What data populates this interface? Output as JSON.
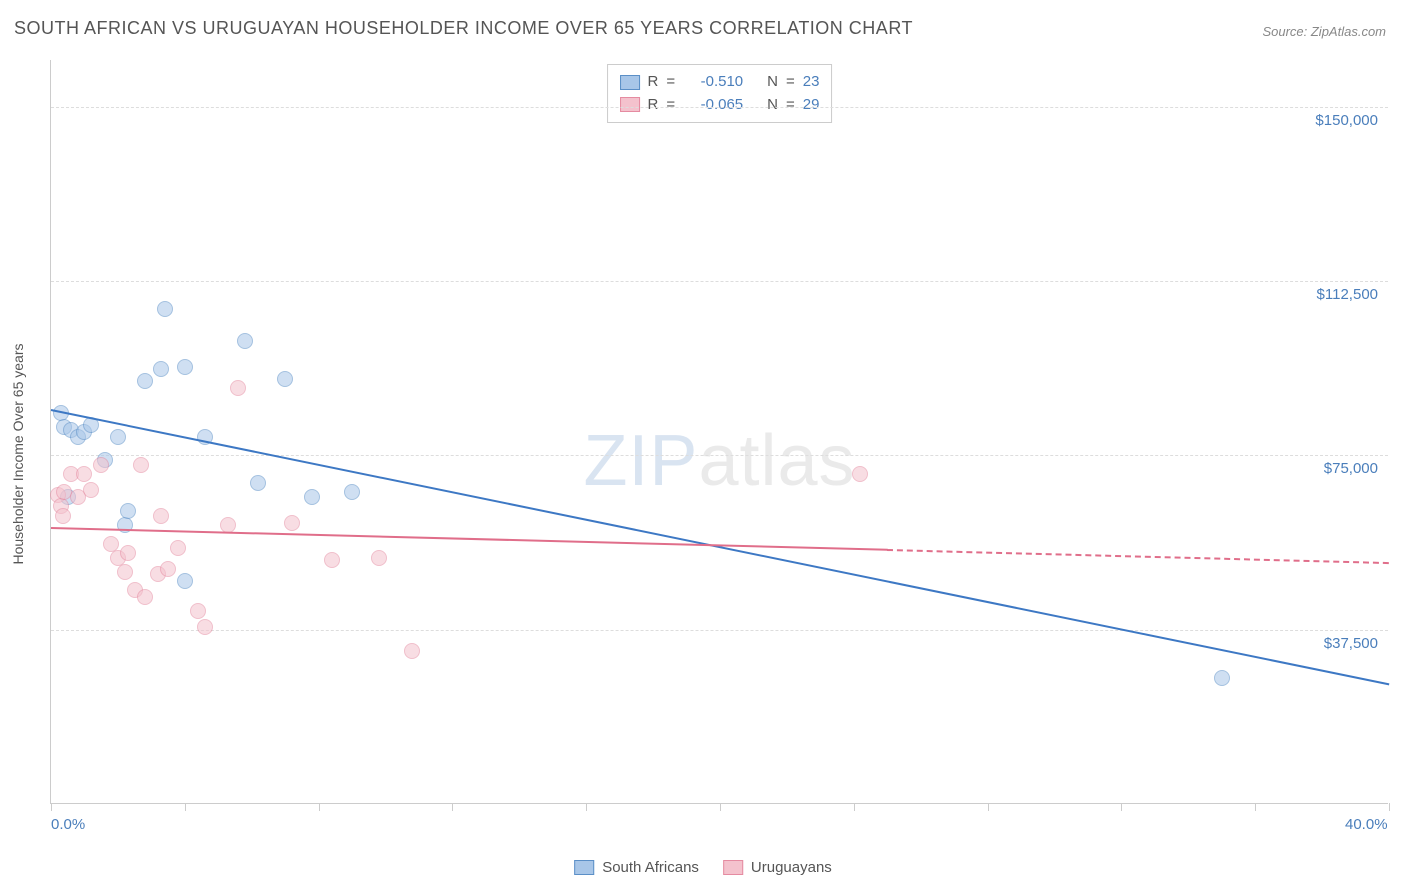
{
  "title": "SOUTH AFRICAN VS URUGUAYAN HOUSEHOLDER INCOME OVER 65 YEARS CORRELATION CHART",
  "source": "Source: ZipAtlas.com",
  "ylabel": "Householder Income Over 65 years",
  "watermark": {
    "part1": "ZIP",
    "part2": "atlas"
  },
  "chart": {
    "type": "scatter-with-trend",
    "background_color": "#ffffff",
    "grid_color": "#dddddd",
    "axis_color": "#cccccc",
    "label_color": "#555555",
    "tick_color": "#4a7ebb",
    "title_fontsize": 18,
    "label_fontsize": 14,
    "tick_fontsize": 15,
    "xlim": [
      0,
      40
    ],
    "ylim": [
      0,
      160000
    ],
    "x_ticks": [
      0,
      4,
      8,
      12,
      16,
      20,
      24,
      28,
      32,
      36,
      40
    ],
    "x_tick_labels": {
      "0": "0.0%",
      "40": "40.0%"
    },
    "y_gridlines": [
      37500,
      75000,
      112500,
      150000
    ],
    "y_tick_labels": [
      "$37,500",
      "$75,000",
      "$112,500",
      "$150,000"
    ],
    "point_radius": 8,
    "point_opacity": 0.55,
    "series": [
      {
        "name": "South Africans",
        "fill": "#a8c6e8",
        "stroke": "#5b8fc7",
        "line_color": "#3d78c4",
        "stats": {
          "R": "-0.510",
          "N": "23"
        },
        "trend": {
          "x1": 0,
          "y1": 85000,
          "x2": 40,
          "y2": 26000,
          "dash_from_x": 40
        },
        "points": [
          [
            0.3,
            84000
          ],
          [
            0.4,
            81000
          ],
          [
            0.5,
            66000
          ],
          [
            0.6,
            80500
          ],
          [
            0.8,
            79000
          ],
          [
            1.0,
            80000
          ],
          [
            1.2,
            81500
          ],
          [
            1.6,
            74000
          ],
          [
            2.0,
            79000
          ],
          [
            2.2,
            60000
          ],
          [
            2.3,
            63000
          ],
          [
            2.8,
            91000
          ],
          [
            3.3,
            93500
          ],
          [
            3.4,
            106500
          ],
          [
            4.0,
            94000
          ],
          [
            4.0,
            48000
          ],
          [
            4.6,
            79000
          ],
          [
            5.8,
            99500
          ],
          [
            6.2,
            69000
          ],
          [
            7.0,
            91500
          ],
          [
            7.8,
            66000
          ],
          [
            9.0,
            67000
          ],
          [
            35.0,
            27000
          ]
        ]
      },
      {
        "name": "Uruguayans",
        "fill": "#f4c2cd",
        "stroke": "#e58ba1",
        "line_color": "#e06e8a",
        "stats": {
          "R": "-0.065",
          "N": "29"
        },
        "trend": {
          "x1": 0,
          "y1": 59500,
          "x2": 40,
          "y2": 52000,
          "dash_from_x": 25
        },
        "points": [
          [
            0.2,
            66500
          ],
          [
            0.3,
            64000
          ],
          [
            0.35,
            62000
          ],
          [
            0.4,
            67000
          ],
          [
            0.6,
            71000
          ],
          [
            0.8,
            66000
          ],
          [
            1.0,
            71000
          ],
          [
            1.2,
            67500
          ],
          [
            1.5,
            73000
          ],
          [
            1.8,
            56000
          ],
          [
            2.0,
            53000
          ],
          [
            2.2,
            50000
          ],
          [
            2.3,
            54000
          ],
          [
            2.5,
            46000
          ],
          [
            2.7,
            73000
          ],
          [
            2.8,
            44500
          ],
          [
            3.2,
            49500
          ],
          [
            3.3,
            62000
          ],
          [
            3.5,
            50500
          ],
          [
            3.8,
            55000
          ],
          [
            4.4,
            41500
          ],
          [
            4.6,
            38000
          ],
          [
            5.3,
            60000
          ],
          [
            5.6,
            89500
          ],
          [
            7.2,
            60500
          ],
          [
            8.4,
            52500
          ],
          [
            9.8,
            53000
          ],
          [
            10.8,
            33000
          ],
          [
            24.2,
            71000
          ]
        ]
      }
    ]
  },
  "stats_legend_labels": {
    "R": "R",
    "equals": "=",
    "N": "N"
  }
}
